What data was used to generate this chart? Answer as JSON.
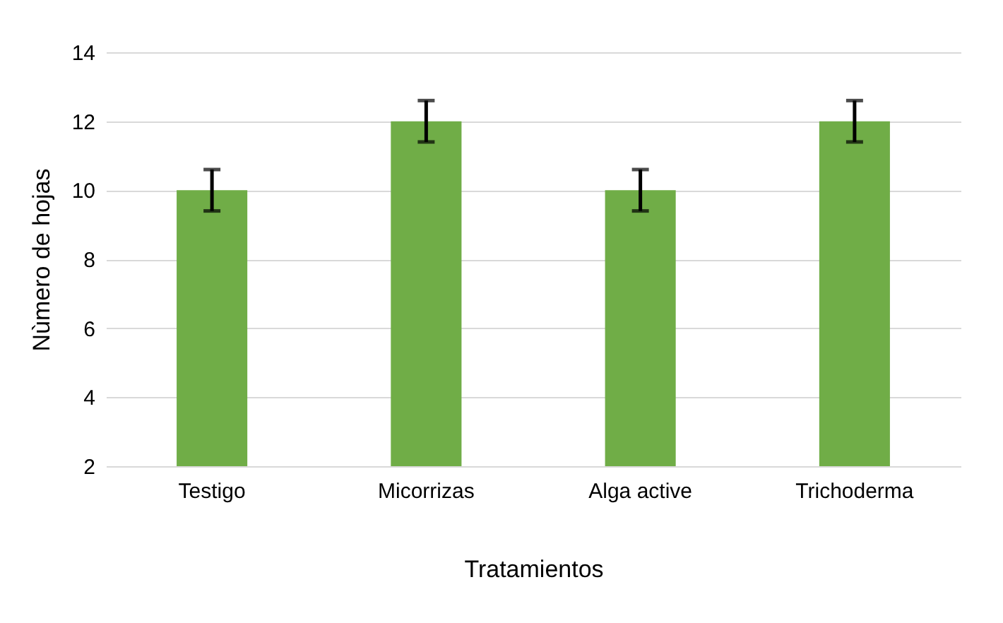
{
  "chart_data": {
    "type": "bar",
    "xlabel": "Tratamientos",
    "ylabel": "Nùmero de hojas",
    "categories": [
      "Testigo",
      "Micorrizas",
      "Alga active",
      "Trichoderma"
    ],
    "values": [
      10,
      12,
      10,
      12
    ],
    "errors": [
      0.6,
      0.6,
      0.6,
      0.6
    ],
    "color": "#70ad47",
    "ylim": [
      2,
      14
    ],
    "yticks": [
      2,
      4,
      6,
      8,
      10,
      12,
      14
    ],
    "grid": "y"
  }
}
